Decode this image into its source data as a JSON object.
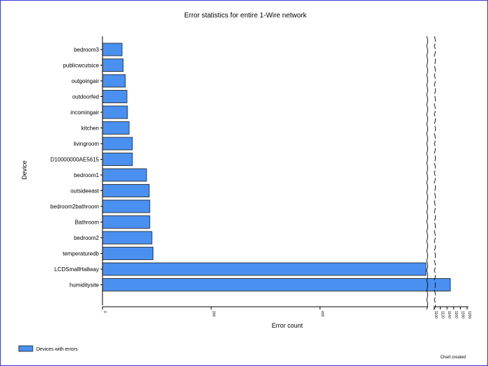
{
  "chart_data": {
    "type": "bar",
    "orientation": "horizontal",
    "title": "Error statistics for entire 1-Wire network",
    "xlabel": "Error count",
    "ylabel": "Device",
    "legend": {
      "position": "bottom-left",
      "label": "Devices with errors"
    },
    "footer": "Chart created",
    "bar_color": "#4a90f0",
    "bar_outline_color": "#1a1a1a",
    "axis_color": "#000000",
    "x_main_range": [
      0,
      600
    ],
    "x_main_ticks": [
      0,
      200,
      400
    ],
    "x_broken_ticks": [
      "1100",
      "1120",
      "1140",
      "1160",
      "1180",
      "1200"
    ],
    "categories": [
      "bedroom3",
      "publicwcutsice",
      "outgoingair",
      "outdoorfed",
      "incomingair",
      "kitchen",
      "livingroom",
      "D10000000AE5615",
      "bedroom1",
      "outsideeast",
      "bedroom2bathroom",
      "Bathroom",
      "bedroom2",
      "temperaturedb",
      "LCDSmallHallway",
      "humiditysite"
    ],
    "values": [
      36,
      38,
      42,
      45,
      46,
      49,
      55,
      55,
      81,
      86,
      87,
      87,
      91,
      93,
      595,
      1150
    ]
  }
}
